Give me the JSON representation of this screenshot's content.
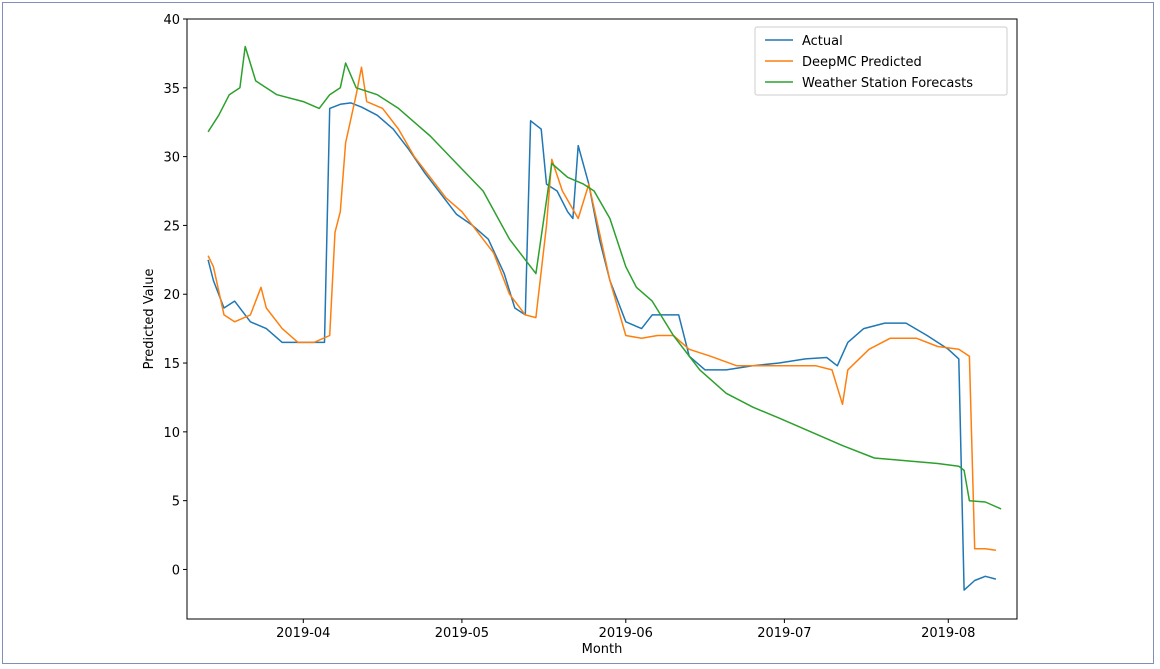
{
  "chart_data": {
    "type": "line",
    "title": "",
    "xlabel": "Month",
    "ylabel": "Predicted Value",
    "xlim": [
      "2019-03-10",
      "2019-08-14"
    ],
    "ylim": [
      -3.6,
      40
    ],
    "yticks": [
      0,
      5,
      10,
      15,
      20,
      25,
      30,
      35,
      40
    ],
    "xticks": [
      "2019-04-01",
      "2019-05-01",
      "2019-06-01",
      "2019-07-01",
      "2019-08-01"
    ],
    "xtick_labels": [
      "2019-04",
      "2019-05",
      "2019-06",
      "2019-07",
      "2019-08"
    ],
    "grid": false,
    "legend_position": "top-right",
    "series": [
      {
        "name": "Actual",
        "color": "#1f77b4",
        "points": [
          [
            "2019-03-14",
            22.5
          ],
          [
            "2019-03-15",
            21.0
          ],
          [
            "2019-03-17",
            19.0
          ],
          [
            "2019-03-19",
            19.5
          ],
          [
            "2019-03-22",
            18.0
          ],
          [
            "2019-03-25",
            17.5
          ],
          [
            "2019-03-28",
            16.5
          ],
          [
            "2019-03-31",
            16.5
          ],
          [
            "2019-04-03",
            16.5
          ],
          [
            "2019-04-05",
            16.5
          ],
          [
            "2019-04-06",
            33.5
          ],
          [
            "2019-04-08",
            33.8
          ],
          [
            "2019-04-10",
            33.9
          ],
          [
            "2019-04-12",
            33.6
          ],
          [
            "2019-04-15",
            33.0
          ],
          [
            "2019-04-18",
            32.0
          ],
          [
            "2019-04-21",
            30.5
          ],
          [
            "2019-04-24",
            28.8
          ],
          [
            "2019-04-27",
            27.3
          ],
          [
            "2019-04-30",
            25.8
          ],
          [
            "2019-05-03",
            25.0
          ],
          [
            "2019-05-06",
            24.0
          ],
          [
            "2019-05-09",
            21.5
          ],
          [
            "2019-05-11",
            19.0
          ],
          [
            "2019-05-13",
            18.5
          ],
          [
            "2019-05-14",
            32.6
          ],
          [
            "2019-05-16",
            32.0
          ],
          [
            "2019-05-17",
            28.0
          ],
          [
            "2019-05-19",
            27.5
          ],
          [
            "2019-05-21",
            26.0
          ],
          [
            "2019-05-22",
            25.5
          ],
          [
            "2019-05-23",
            30.8
          ],
          [
            "2019-05-25",
            28.0
          ],
          [
            "2019-05-27",
            24.0
          ],
          [
            "2019-05-29",
            21.0
          ],
          [
            "2019-06-01",
            18.0
          ],
          [
            "2019-06-04",
            17.5
          ],
          [
            "2019-06-06",
            18.5
          ],
          [
            "2019-06-09",
            18.5
          ],
          [
            "2019-06-11",
            18.5
          ],
          [
            "2019-06-13",
            15.5
          ],
          [
            "2019-06-16",
            14.5
          ],
          [
            "2019-06-20",
            14.5
          ],
          [
            "2019-06-25",
            14.8
          ],
          [
            "2019-06-30",
            15.0
          ],
          [
            "2019-07-05",
            15.3
          ],
          [
            "2019-07-09",
            15.4
          ],
          [
            "2019-07-11",
            14.8
          ],
          [
            "2019-07-13",
            16.5
          ],
          [
            "2019-07-16",
            17.5
          ],
          [
            "2019-07-20",
            17.9
          ],
          [
            "2019-07-24",
            17.9
          ],
          [
            "2019-07-28",
            17.0
          ],
          [
            "2019-08-01",
            16.0
          ],
          [
            "2019-08-03",
            15.3
          ],
          [
            "2019-08-04",
            -1.5
          ],
          [
            "2019-08-06",
            -0.8
          ],
          [
            "2019-08-08",
            -0.5
          ],
          [
            "2019-08-10",
            -0.7
          ]
        ]
      },
      {
        "name": "DeepMC Predicted",
        "color": "#ff7f0e",
        "points": [
          [
            "2019-03-14",
            22.8
          ],
          [
            "2019-03-15",
            22.0
          ],
          [
            "2019-03-17",
            18.5
          ],
          [
            "2019-03-19",
            18.0
          ],
          [
            "2019-03-22",
            18.5
          ],
          [
            "2019-03-24",
            20.5
          ],
          [
            "2019-03-25",
            19.0
          ],
          [
            "2019-03-28",
            17.5
          ],
          [
            "2019-03-31",
            16.5
          ],
          [
            "2019-04-03",
            16.5
          ],
          [
            "2019-04-06",
            17.0
          ],
          [
            "2019-04-07",
            24.5
          ],
          [
            "2019-04-08",
            26.0
          ],
          [
            "2019-04-09",
            31.0
          ],
          [
            "2019-04-11",
            34.5
          ],
          [
            "2019-04-12",
            36.5
          ],
          [
            "2019-04-13",
            34.0
          ],
          [
            "2019-04-16",
            33.5
          ],
          [
            "2019-04-19",
            32.0
          ],
          [
            "2019-04-22",
            30.0
          ],
          [
            "2019-04-25",
            28.5
          ],
          [
            "2019-04-28",
            27.0
          ],
          [
            "2019-05-01",
            26.0
          ],
          [
            "2019-05-04",
            24.5
          ],
          [
            "2019-05-07",
            23.0
          ],
          [
            "2019-05-10",
            20.0
          ],
          [
            "2019-05-13",
            18.5
          ],
          [
            "2019-05-15",
            18.3
          ],
          [
            "2019-05-17",
            25.0
          ],
          [
            "2019-05-18",
            29.8
          ],
          [
            "2019-05-20",
            27.5
          ],
          [
            "2019-05-23",
            25.5
          ],
          [
            "2019-05-25",
            28.0
          ],
          [
            "2019-05-27",
            24.5
          ],
          [
            "2019-05-29",
            21.0
          ],
          [
            "2019-06-01",
            17.0
          ],
          [
            "2019-06-04",
            16.8
          ],
          [
            "2019-06-07",
            17.0
          ],
          [
            "2019-06-10",
            17.0
          ],
          [
            "2019-06-13",
            16.0
          ],
          [
            "2019-06-17",
            15.5
          ],
          [
            "2019-06-22",
            14.8
          ],
          [
            "2019-06-27",
            14.8
          ],
          [
            "2019-07-02",
            14.8
          ],
          [
            "2019-07-07",
            14.8
          ],
          [
            "2019-07-10",
            14.5
          ],
          [
            "2019-07-12",
            12.0
          ],
          [
            "2019-07-13",
            14.5
          ],
          [
            "2019-07-17",
            16.0
          ],
          [
            "2019-07-21",
            16.8
          ],
          [
            "2019-07-26",
            16.8
          ],
          [
            "2019-07-30",
            16.2
          ],
          [
            "2019-08-03",
            16.0
          ],
          [
            "2019-08-05",
            15.5
          ],
          [
            "2019-08-06",
            1.5
          ],
          [
            "2019-08-08",
            1.5
          ],
          [
            "2019-08-10",
            1.4
          ]
        ]
      },
      {
        "name": "Weather Station Forecasts",
        "color": "#2ca02c",
        "points": [
          [
            "2019-03-14",
            31.8
          ],
          [
            "2019-03-16",
            33.0
          ],
          [
            "2019-03-18",
            34.5
          ],
          [
            "2019-03-20",
            35.0
          ],
          [
            "2019-03-21",
            38.0
          ],
          [
            "2019-03-23",
            35.5
          ],
          [
            "2019-03-27",
            34.5
          ],
          [
            "2019-04-01",
            34.0
          ],
          [
            "2019-04-04",
            33.5
          ],
          [
            "2019-04-06",
            34.5
          ],
          [
            "2019-04-08",
            35.0
          ],
          [
            "2019-04-09",
            36.8
          ],
          [
            "2019-04-11",
            35.0
          ],
          [
            "2019-04-15",
            34.5
          ],
          [
            "2019-04-19",
            33.5
          ],
          [
            "2019-04-22",
            32.5
          ],
          [
            "2019-04-25",
            31.5
          ],
          [
            "2019-04-30",
            29.5
          ],
          [
            "2019-05-05",
            27.5
          ],
          [
            "2019-05-10",
            24.0
          ],
          [
            "2019-05-15",
            21.5
          ],
          [
            "2019-05-18",
            29.5
          ],
          [
            "2019-05-21",
            28.5
          ],
          [
            "2019-05-24",
            28.0
          ],
          [
            "2019-05-26",
            27.5
          ],
          [
            "2019-05-29",
            25.5
          ],
          [
            "2019-06-01",
            22.0
          ],
          [
            "2019-06-03",
            20.5
          ],
          [
            "2019-06-06",
            19.5
          ],
          [
            "2019-06-10",
            17.0
          ],
          [
            "2019-06-15",
            14.5
          ],
          [
            "2019-06-20",
            12.8
          ],
          [
            "2019-06-25",
            11.8
          ],
          [
            "2019-06-30",
            11.0
          ],
          [
            "2019-07-06",
            10.0
          ],
          [
            "2019-07-12",
            9.0
          ],
          [
            "2019-07-18",
            8.1
          ],
          [
            "2019-07-24",
            7.9
          ],
          [
            "2019-07-30",
            7.7
          ],
          [
            "2019-08-03",
            7.5
          ],
          [
            "2019-08-04",
            7.2
          ],
          [
            "2019-08-05",
            5.0
          ],
          [
            "2019-08-08",
            4.9
          ],
          [
            "2019-08-11",
            4.4
          ]
        ]
      }
    ]
  }
}
